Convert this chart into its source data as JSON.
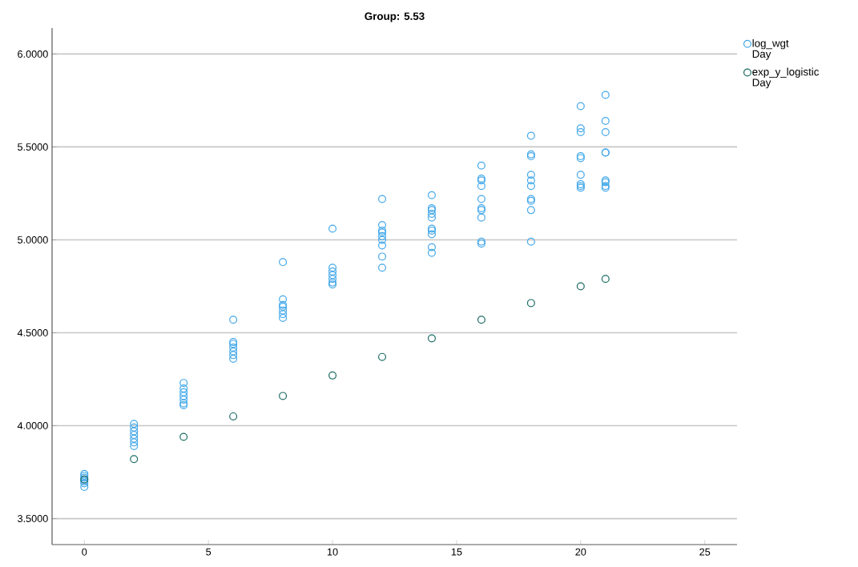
{
  "chart_data": {
    "type": "scatter",
    "title": "Group: 5.53",
    "xlim": [
      -1.3,
      26.3
    ],
    "ylim": [
      3.36,
      6.14
    ],
    "xticks": [
      0,
      5,
      10,
      15,
      20,
      25
    ],
    "yticks": [
      {
        "value": 3.5,
        "label": "3.5000"
      },
      {
        "value": 4.0,
        "label": "4.0000"
      },
      {
        "value": 4.5,
        "label": "4.5000"
      },
      {
        "value": 5.0,
        "label": "5.0000"
      },
      {
        "value": 5.5,
        "label": "5.5000"
      },
      {
        "value": 6.0,
        "label": "6.0000"
      }
    ],
    "grid": "y",
    "legend": "top right",
    "marker": "circle",
    "series": [
      {
        "name": "log_wgt Day",
        "color": "#41a7e9",
        "x": [
          0,
          0,
          0,
          0,
          0,
          0,
          0,
          2,
          2,
          2,
          2,
          2,
          2,
          2,
          4,
          4,
          4,
          4,
          4,
          4,
          4,
          6,
          6,
          6,
          6,
          6,
          6,
          6,
          8,
          8,
          8,
          8,
          8,
          8,
          8,
          10,
          10,
          10,
          10,
          10,
          10,
          10,
          12,
          12,
          12,
          12,
          12,
          12,
          12,
          12,
          12,
          14,
          14,
          14,
          14,
          14,
          14,
          14,
          14,
          14,
          14,
          16,
          16,
          16,
          16,
          16,
          16,
          16,
          16,
          16,
          16,
          18,
          18,
          18,
          18,
          18,
          18,
          18,
          18,
          18,
          18,
          20,
          20,
          20,
          20,
          20,
          20,
          20,
          20,
          20,
          21,
          21,
          21,
          21,
          21,
          21,
          21,
          21,
          21
        ],
        "values": [
          3.67,
          3.69,
          3.7,
          3.71,
          3.72,
          3.73,
          3.74,
          4.01,
          3.99,
          3.97,
          3.95,
          3.93,
          3.91,
          3.89,
          4.23,
          4.2,
          4.18,
          4.16,
          4.14,
          4.12,
          4.11,
          4.57,
          4.45,
          4.44,
          4.42,
          4.4,
          4.38,
          4.36,
          4.88,
          4.68,
          4.65,
          4.64,
          4.62,
          4.6,
          4.58,
          5.06,
          4.85,
          4.83,
          4.81,
          4.79,
          4.77,
          4.76,
          5.22,
          5.08,
          5.05,
          5.04,
          5.02,
          5.0,
          4.97,
          4.91,
          4.85,
          5.24,
          5.17,
          5.16,
          5.14,
          5.12,
          5.06,
          5.05,
          5.03,
          4.96,
          4.93,
          5.4,
          5.33,
          5.32,
          5.29,
          5.22,
          5.17,
          5.16,
          5.12,
          4.99,
          4.98,
          5.56,
          5.46,
          5.45,
          5.35,
          5.32,
          5.29,
          5.22,
          5.21,
          5.16,
          4.99,
          5.72,
          5.6,
          5.58,
          5.45,
          5.44,
          5.35,
          5.3,
          5.29,
          5.28,
          5.78,
          5.64,
          5.58,
          5.47,
          5.47,
          5.32,
          5.31,
          5.29,
          5.28
        ]
      },
      {
        "name": "exp_y_logistic Day",
        "color": "#1a6b63",
        "x": [
          0,
          2,
          4,
          6,
          8,
          10,
          12,
          14,
          16,
          18,
          20,
          21
        ],
        "values": [
          3.71,
          3.82,
          3.94,
          4.05,
          4.16,
          4.27,
          4.37,
          4.47,
          4.57,
          4.66,
          4.75,
          4.79
        ]
      }
    ]
  }
}
